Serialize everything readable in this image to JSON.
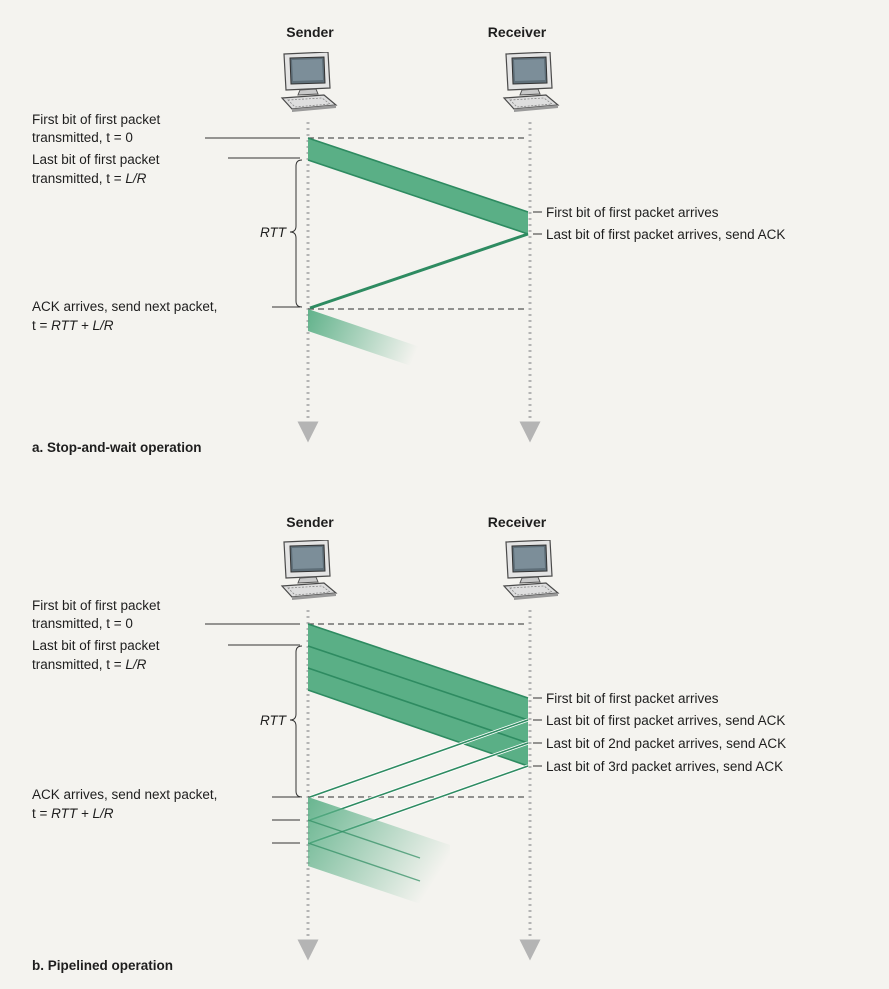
{
  "diagram_a": {
    "sender": "Sender",
    "receiver": "Receiver",
    "first_bit_sent_1": "First bit of first packet",
    "first_bit_sent_2": "transmitted, t = 0",
    "last_bit_sent_1": "Last bit of first packet",
    "last_bit_sent_2": "transmitted, t = ",
    "last_bit_sent_var": "L/R",
    "rtt": "RTT",
    "first_bit_arrives": "First bit of first packet arrives",
    "last_bit_arrives": "Last bit of first packet arrives, send ACK",
    "ack_1": "ACK arrives, send next packet,",
    "ack_2_prefix": "t = ",
    "ack_2_var": "RTT + L/R",
    "caption": "a. Stop-and-wait operation"
  },
  "diagram_b": {
    "sender": "Sender",
    "receiver": "Receiver",
    "first_bit_sent_1": "First bit of first packet",
    "first_bit_sent_2": "transmitted, t = 0",
    "last_bit_sent_1": "Last bit of first packet",
    "last_bit_sent_2": "transmitted, t = ",
    "last_bit_sent_var": "L/R",
    "rtt": "RTT",
    "first_bit_arrives": "First bit of first packet arrives",
    "last_bit_arrives_1": "Last bit of first packet arrives, send ACK",
    "last_bit_arrives_2": "Last bit of 2nd packet arrives, send ACK",
    "last_bit_arrives_3": "Last bit of 3rd packet arrives, send ACK",
    "ack_1": "ACK arrives, send next packet,",
    "ack_2_prefix": "t = ",
    "ack_2_var": "RTT + L/R",
    "caption": "b. Pipelined operation"
  },
  "colors": {
    "band_fill": "#5aaf86",
    "band_edge": "#2e8b61",
    "ack_line": "#2e8b61",
    "timeline": "#b4b4b4",
    "dashed": "#555555",
    "leader": "#333333"
  }
}
